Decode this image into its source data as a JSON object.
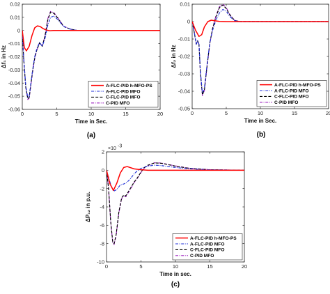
{
  "colors": {
    "A-FLC-PID h-MFO-PS": "#ff0000",
    "A-FLC-PID MFO": "#1f2fd8",
    "C-FLC-PID MFO": "#000000",
    "C-PID MFO": "#9b1fbf"
  },
  "chart_data": [
    {
      "id": "a",
      "type": "line",
      "caption": "(a)",
      "xlabel": "Time in Sec.",
      "ylabel": "Δf₁ in Hz",
      "xlim": [
        0,
        20
      ],
      "ylim": [
        -0.06,
        0.02
      ],
      "xticks": [
        0,
        5,
        10,
        15,
        20
      ],
      "yticks": [
        -0.06,
        -0.05,
        -0.04,
        -0.03,
        -0.02,
        -0.01,
        0,
        0.01,
        0.02
      ],
      "ytick_labels": [
        "-0.06",
        "-0.05",
        "-0.04",
        "-0.03",
        "-0.02",
        "-0.01",
        "0",
        "0.01",
        "0.02"
      ],
      "grid": false,
      "legend_position": "bottom-right",
      "series": [
        {
          "name": "A-FLC-PID h-MFO-PS",
          "style": "solid",
          "x": [
            0,
            0.3,
            0.6,
            1.0,
            1.4,
            1.8,
            2.2,
            2.6,
            3.0,
            3.5,
            4.0,
            4.5,
            5.0,
            6.0,
            7.0,
            8.0,
            10.0,
            15.0,
            20.0
          ],
          "y": [
            0,
            -0.013,
            -0.0155,
            -0.012,
            -0.004,
            0.002,
            0.0035,
            0.003,
            0.0015,
            0.0003,
            -0.0002,
            0,
            0,
            0,
            0,
            0,
            0,
            0,
            0
          ]
        },
        {
          "name": "A-FLC-PID MFO",
          "style": "dashdot",
          "x": [
            0,
            0.2,
            0.5,
            0.8,
            1.0,
            1.2,
            1.5,
            1.8,
            2.1,
            2.5,
            2.9,
            3.3,
            3.7,
            4.1,
            4.6,
            5.2,
            6.0,
            7.0,
            8.0,
            10.0,
            15.0,
            20.0
          ],
          "y": [
            0,
            -0.02,
            -0.042,
            -0.051,
            -0.05,
            -0.042,
            -0.03,
            -0.02,
            -0.014,
            -0.009,
            -0.012,
            -0.006,
            0.004,
            0.01,
            0.011,
            0.008,
            0.003,
            0.001,
            0,
            0,
            0,
            0
          ]
        },
        {
          "name": "C-FLC-PID MFO",
          "style": "dashed",
          "x": [
            0,
            0.2,
            0.5,
            0.8,
            1.0,
            1.2,
            1.5,
            1.8,
            2.1,
            2.5,
            2.9,
            3.3,
            3.7,
            4.1,
            4.6,
            5.2,
            6.0,
            7.0,
            8.0,
            10.0,
            15.0,
            20.0
          ],
          "y": [
            0,
            -0.021,
            -0.043,
            -0.052,
            -0.051,
            -0.043,
            -0.031,
            -0.021,
            -0.015,
            -0.0095,
            -0.012,
            -0.004,
            0.008,
            0.014,
            0.013,
            0.009,
            0.003,
            0.001,
            0,
            0,
            0,
            0
          ]
        },
        {
          "name": "C-PID MFO",
          "style": "dashdot",
          "x": [
            0,
            0.2,
            0.5,
            0.8,
            1.0,
            1.2,
            1.5,
            1.8,
            2.1,
            2.5,
            2.9,
            3.3,
            3.7,
            4.1,
            4.6,
            5.2,
            6.0,
            7.0,
            8.0,
            10.0,
            15.0,
            20.0
          ],
          "y": [
            0,
            -0.021,
            -0.043,
            -0.0525,
            -0.0515,
            -0.0435,
            -0.0315,
            -0.0215,
            -0.015,
            -0.0095,
            -0.012,
            -0.004,
            0.009,
            0.0145,
            0.0135,
            0.0095,
            0.0032,
            0.001,
            0,
            0,
            0,
            0
          ]
        }
      ]
    },
    {
      "id": "b",
      "type": "line",
      "caption": "(b)",
      "xlabel": "Time in Sec.",
      "ylabel": "Δf₂ in Hz",
      "xlim": [
        0,
        20
      ],
      "ylim": [
        -0.05,
        0.01
      ],
      "xticks": [
        0,
        5,
        10,
        15,
        20
      ],
      "yticks": [
        -0.05,
        -0.04,
        -0.03,
        -0.02,
        -0.01,
        0,
        0.01
      ],
      "ytick_labels": [
        "-0.05",
        "-0.04",
        "-0.03",
        "-0.02",
        "-0.01",
        "0",
        "0.01"
      ],
      "grid": false,
      "legend_position": "bottom-right",
      "series": [
        {
          "name": "A-FLC-PID h-MFO-PS",
          "style": "solid",
          "x": [
            0,
            0.5,
            1.0,
            1.4,
            1.8,
            2.3,
            2.8,
            3.3,
            4.0,
            5.0,
            6.0,
            8.0,
            10.0,
            15.0,
            20.0
          ],
          "y": [
            0,
            -0.005,
            -0.0085,
            -0.0075,
            -0.003,
            0,
            0.0008,
            0.0005,
            0.0001,
            0,
            0,
            0,
            0,
            0,
            0
          ]
        },
        {
          "name": "A-FLC-PID MFO",
          "style": "dashdot",
          "x": [
            0,
            0.3,
            0.6,
            0.8,
            1.0,
            1.2,
            1.5,
            1.8,
            2.2,
            2.6,
            3.0,
            3.5,
            4.0,
            4.5,
            5.0,
            5.5,
            6.2,
            7.0,
            8.0,
            10.0,
            15.0,
            20.0
          ],
          "y": [
            0,
            -0.006,
            -0.013,
            -0.011,
            -0.013,
            -0.028,
            -0.041,
            -0.038,
            -0.024,
            -0.012,
            -0.005,
            0.001,
            0.005,
            0.007,
            0.006,
            0.003,
            0.0005,
            0,
            0,
            0,
            0,
            0
          ]
        },
        {
          "name": "C-FLC-PID MFO",
          "style": "dashed",
          "x": [
            0,
            0.3,
            0.6,
            0.8,
            1.0,
            1.2,
            1.5,
            1.8,
            2.2,
            2.6,
            3.0,
            3.5,
            4.0,
            4.5,
            5.0,
            5.5,
            6.2,
            7.0,
            8.0,
            10.0,
            15.0,
            20.0
          ],
          "y": [
            0,
            -0.006,
            -0.013,
            -0.011,
            -0.013,
            -0.029,
            -0.042,
            -0.039,
            -0.025,
            -0.012,
            -0.004,
            0.003,
            0.008,
            0.0095,
            0.0075,
            0.004,
            0.0007,
            0,
            0,
            0,
            0,
            0
          ]
        },
        {
          "name": "C-PID MFO",
          "style": "dashdot",
          "x": [
            0,
            0.3,
            0.6,
            0.8,
            1.0,
            1.2,
            1.5,
            1.8,
            2.2,
            2.6,
            3.0,
            3.5,
            4.0,
            4.5,
            5.0,
            5.5,
            6.2,
            7.0,
            8.0,
            10.0,
            15.0,
            20.0
          ],
          "y": [
            0,
            -0.006,
            -0.013,
            -0.011,
            -0.013,
            -0.029,
            -0.0425,
            -0.0395,
            -0.0255,
            -0.0125,
            -0.0038,
            0.0035,
            0.0085,
            0.01,
            0.008,
            0.0042,
            0.0008,
            0,
            0,
            0,
            0,
            0
          ]
        }
      ]
    },
    {
      "id": "c",
      "type": "line",
      "caption": "(c)",
      "xlabel": "Time in sec.",
      "ylabel": "ΔP₁₂ in p.u.",
      "y_multiplier": "×10",
      "y_exponent": "-3",
      "xlim": [
        0,
        20
      ],
      "ylim": [
        -10,
        2
      ],
      "xticks": [
        0,
        5,
        10,
        15,
        20
      ],
      "yticks": [
        -10,
        -8,
        -6,
        -4,
        -2,
        0,
        2
      ],
      "ytick_labels": [
        "-10",
        "-8",
        "-6",
        "-4",
        "-2",
        "0",
        "2"
      ],
      "grid": false,
      "legend_position": "bottom-right",
      "series": [
        {
          "name": "A-FLC-PID h-MFO-PS",
          "style": "solid",
          "x": [
            0,
            0.5,
            1.0,
            1.5,
            2.0,
            2.5,
            3.0,
            4.0,
            5.0,
            6.0,
            8.0,
            10.0,
            15.0,
            20.0
          ],
          "y": [
            0,
            -1.5,
            -2.2,
            -1.4,
            -0.3,
            0.3,
            0.4,
            0.15,
            0.05,
            0,
            0,
            0,
            0,
            0
          ]
        },
        {
          "name": "A-FLC-PID MFO",
          "style": "dashdot",
          "x": [
            0,
            0.5,
            1.0,
            1.5,
            2.0,
            2.5,
            3.0,
            3.5,
            4.0,
            4.5,
            5.0,
            6.0,
            7.0,
            8.0,
            9.0,
            10.0,
            12.0,
            15.0,
            20.0
          ],
          "y": [
            0,
            -1.3,
            -2.3,
            -2.1,
            -1.6,
            -1.5,
            -1.3,
            -0.9,
            -0.4,
            -0.05,
            0.2,
            0.45,
            0.55,
            0.5,
            0.4,
            0.3,
            0.15,
            0.05,
            0
          ]
        },
        {
          "name": "C-FLC-PID MFO",
          "style": "dashed",
          "x": [
            0,
            0.3,
            0.6,
            0.9,
            1.1,
            1.4,
            1.8,
            2.2,
            2.5,
            2.8,
            3.2,
            3.6,
            4.0,
            4.5,
            5.0,
            5.5,
            6.0,
            7.0,
            8.0,
            9.0,
            10.0,
            12.0,
            15.0,
            20.0
          ],
          "y": [
            0,
            -2.0,
            -5.5,
            -7.8,
            -8.0,
            -7.0,
            -4.5,
            -3.0,
            -2.7,
            -2.8,
            -2.3,
            -1.8,
            -1.3,
            -0.8,
            -0.2,
            0.3,
            0.55,
            0.8,
            0.75,
            0.6,
            0.45,
            0.2,
            0.05,
            0
          ]
        },
        {
          "name": "C-PID MFO",
          "style": "dashdot",
          "x": [
            0,
            0.3,
            0.6,
            0.9,
            1.1,
            1.4,
            1.8,
            2.2,
            2.5,
            2.8,
            3.2,
            3.6,
            4.0,
            4.5,
            5.0,
            5.5,
            6.0,
            7.0,
            8.0,
            9.0,
            10.0,
            12.0,
            15.0,
            20.0
          ],
          "y": [
            0,
            -2.0,
            -5.6,
            -7.9,
            -8.1,
            -7.1,
            -4.6,
            -3.1,
            -2.8,
            -2.9,
            -2.4,
            -1.9,
            -1.35,
            -0.85,
            -0.25,
            0.25,
            0.5,
            0.82,
            0.78,
            0.62,
            0.47,
            0.22,
            0.06,
            0
          ]
        }
      ]
    }
  ]
}
